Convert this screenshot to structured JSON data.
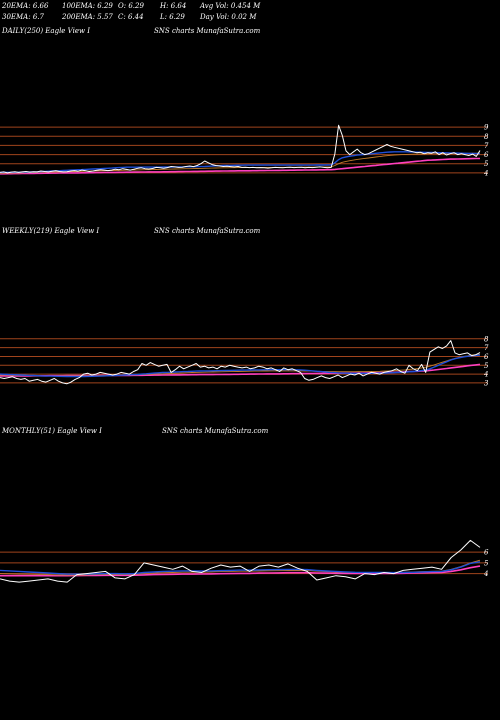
{
  "stats_row1": [
    "20EMA: 6.66",
    "100EMA: 6.29",
    "O: 6.29",
    "H: 6.64",
    "Avg Vol: 0.454  M"
  ],
  "stats_row2": [
    "30EMA: 6.7",
    "200EMA: 5.57",
    "C: 6.44",
    "L: 6.29",
    "Day Vol: 0.02  M"
  ],
  "panels": [
    {
      "label": "DAILY(250) Eagle  View  I",
      "watermark": "SNS charts MunafaSutra.com"
    },
    {
      "label": "WEEKLY(219) Eagle  View  I",
      "watermark": "SNS charts MunafaSutra.com"
    },
    {
      "label": "MONTHLY(51) Eagle  View  I",
      "watermark": "SNS charts MunafaSutra.com"
    }
  ],
  "colors": {
    "background": "#000000",
    "price": "#ffffff",
    "ema_fast": "#1f4fd8",
    "ema_slow": "#ff3fbf",
    "ema_mid": "#c07a2a",
    "hline": "#a0441c"
  },
  "chart_data": [
    {
      "type": "line",
      "name": "daily",
      "yticks": [
        4,
        5,
        6,
        7,
        8,
        9
      ],
      "ylim": [
        3.0,
        10.0
      ],
      "close": [
        4.05,
        4.1,
        4.0,
        4.08,
        4.12,
        4.05,
        4.1,
        4.15,
        4.08,
        4.12,
        4.1,
        4.2,
        4.15,
        4.1,
        4.18,
        4.22,
        4.15,
        4.1,
        4.12,
        4.2,
        4.25,
        4.18,
        4.3,
        4.22,
        4.15,
        4.2,
        4.28,
        4.35,
        4.3,
        4.25,
        4.3,
        4.4,
        4.35,
        4.45,
        4.38,
        4.3,
        4.4,
        4.5,
        4.55,
        4.45,
        4.42,
        4.48,
        4.6,
        4.55,
        4.5,
        4.58,
        4.7,
        4.65,
        4.6,
        4.62,
        4.7,
        4.75,
        4.68,
        4.8,
        5.0,
        5.3,
        5.1,
        4.9,
        4.8,
        4.75,
        4.7,
        4.72,
        4.68,
        4.65,
        4.7,
        4.6,
        4.62,
        4.58,
        4.6,
        4.55,
        4.58,
        4.55,
        4.52,
        4.55,
        4.6,
        4.58,
        4.55,
        4.6,
        4.62,
        4.58,
        4.6,
        4.62,
        4.55,
        4.6,
        4.58,
        4.62,
        4.65,
        4.6,
        4.55,
        4.6,
        6.1,
        9.2,
        8.1,
        6.4,
        6.0,
        6.3,
        6.6,
        6.2,
        6.0,
        6.1,
        6.3,
        6.5,
        6.7,
        6.9,
        7.1,
        6.9,
        6.8,
        6.7,
        6.6,
        6.5,
        6.4,
        6.3,
        6.2,
        6.25,
        6.1,
        6.2,
        6.15,
        6.3,
        6.0,
        6.2,
        5.95,
        6.1,
        6.2,
        6.0,
        6.1,
        6.0,
        5.9,
        6.05,
        5.8,
        6.44
      ],
      "ema_fast": [
        4.05,
        4.06,
        4.06,
        4.06,
        4.07,
        4.07,
        4.08,
        4.08,
        4.09,
        4.1,
        4.12,
        4.14,
        4.16,
        4.18,
        4.2,
        4.22,
        4.24,
        4.26,
        4.28,
        4.3,
        4.32,
        4.34,
        4.36,
        4.38,
        4.4,
        4.42,
        4.44,
        4.46,
        4.48,
        4.5,
        4.52,
        4.55,
        4.58,
        4.6,
        4.62,
        4.62,
        4.62,
        4.62,
        4.62,
        4.63,
        4.63,
        4.63,
        4.63,
        4.63,
        4.64,
        4.64,
        4.64,
        4.65,
        4.65,
        4.65,
        4.66,
        4.66,
        4.66,
        4.67,
        4.68,
        4.7,
        4.72,
        4.74,
        4.76,
        4.78,
        4.8,
        4.81,
        4.82,
        4.83,
        4.84,
        4.84,
        4.85,
        4.85,
        4.85,
        4.85,
        4.85,
        4.85,
        4.85,
        4.85,
        4.85,
        4.85,
        4.85,
        4.85,
        4.85,
        4.85,
        4.85,
        4.85,
        4.85,
        4.85,
        4.85,
        4.86,
        4.86,
        4.86,
        4.86,
        4.87,
        5.1,
        5.45,
        5.65,
        5.75,
        5.82,
        5.88,
        5.94,
        5.98,
        6.02,
        6.06,
        6.1,
        6.14,
        6.18,
        6.22,
        6.26,
        6.28,
        6.3,
        6.3,
        6.3,
        6.3,
        6.29,
        6.28,
        6.27,
        6.26,
        6.25,
        6.24,
        6.23,
        6.22,
        6.21,
        6.2,
        6.19,
        6.18,
        6.17,
        6.16,
        6.15,
        6.14,
        6.13,
        6.12,
        6.11,
        6.1
      ],
      "ema_slow": [
        3.9,
        3.9,
        3.91,
        3.91,
        3.92,
        3.92,
        3.93,
        3.93,
        3.94,
        3.94,
        3.95,
        3.95,
        3.96,
        3.96,
        3.97,
        3.97,
        3.98,
        3.98,
        3.99,
        3.99,
        4.0,
        4.0,
        4.01,
        4.01,
        4.02,
        4.02,
        4.03,
        4.03,
        4.04,
        4.04,
        4.05,
        4.05,
        4.06,
        4.06,
        4.07,
        4.07,
        4.08,
        4.08,
        4.09,
        4.09,
        4.1,
        4.1,
        4.11,
        4.11,
        4.12,
        4.12,
        4.13,
        4.13,
        4.14,
        4.14,
        4.15,
        4.15,
        4.16,
        4.16,
        4.17,
        4.17,
        4.18,
        4.18,
        4.19,
        4.19,
        4.2,
        4.2,
        4.21,
        4.21,
        4.22,
        4.22,
        4.23,
        4.23,
        4.24,
        4.24,
        4.25,
        4.25,
        4.26,
        4.26,
        4.27,
        4.27,
        4.28,
        4.28,
        4.29,
        4.29,
        4.3,
        4.3,
        4.31,
        4.31,
        4.32,
        4.32,
        4.33,
        4.33,
        4.34,
        4.34,
        4.38,
        4.42,
        4.46,
        4.5,
        4.54,
        4.58,
        4.62,
        4.66,
        4.7,
        4.74,
        4.78,
        4.82,
        4.86,
        4.9,
        4.94,
        4.98,
        5.02,
        5.06,
        5.1,
        5.14,
        5.18,
        5.22,
        5.26,
        5.3,
        5.34,
        5.38,
        5.4,
        5.42,
        5.44,
        5.46,
        5.48,
        5.5,
        5.51,
        5.52,
        5.53,
        5.54,
        5.55,
        5.56,
        5.57,
        5.57
      ],
      "ema_mid": [
        3.95,
        3.96,
        3.97,
        3.98,
        3.99,
        4.0,
        4.01,
        4.02,
        4.03,
        4.04,
        4.05,
        4.06,
        4.07,
        4.08,
        4.09,
        4.1,
        4.11,
        4.12,
        4.13,
        4.14,
        4.15,
        4.16,
        4.17,
        4.18,
        4.19,
        4.2,
        4.21,
        4.22,
        4.23,
        4.24,
        4.25,
        4.26,
        4.27,
        4.28,
        4.29,
        4.3,
        4.31,
        4.32,
        4.33,
        4.34,
        4.35,
        4.36,
        4.37,
        4.38,
        4.39,
        4.4,
        4.41,
        4.42,
        4.43,
        4.44,
        4.45,
        4.46,
        4.47,
        4.48,
        4.49,
        4.5,
        4.51,
        4.52,
        4.53,
        4.54,
        4.55,
        4.55,
        4.56,
        4.56,
        4.57,
        4.57,
        4.58,
        4.58,
        4.59,
        4.59,
        4.6,
        4.6,
        4.6,
        4.6,
        4.61,
        4.61,
        4.61,
        4.61,
        4.62,
        4.62,
        4.62,
        4.62,
        4.63,
        4.63,
        4.63,
        4.63,
        4.64,
        4.64,
        4.64,
        4.64,
        4.8,
        5.0,
        5.15,
        5.25,
        5.33,
        5.4,
        5.47,
        5.53,
        5.58,
        5.63,
        5.68,
        5.73,
        5.78,
        5.83,
        5.88,
        5.92,
        5.95,
        5.98,
        6.0,
        6.02,
        6.03,
        6.04,
        6.05,
        6.06,
        6.07,
        6.08,
        6.09,
        6.1,
        6.1,
        6.11,
        6.11,
        6.12,
        6.12,
        6.13,
        6.13,
        6.14,
        6.14,
        6.15,
        6.15,
        6.16
      ]
    },
    {
      "type": "line",
      "name": "weekly",
      "yticks": [
        3,
        4,
        5,
        6,
        7,
        8
      ],
      "ylim": [
        2.2,
        9.0
      ],
      "close": [
        3.6,
        3.5,
        3.6,
        3.7,
        3.5,
        3.4,
        3.5,
        3.2,
        3.3,
        3.4,
        3.2,
        3.1,
        3.3,
        3.5,
        3.2,
        3.0,
        2.9,
        3.1,
        3.4,
        3.6,
        4.0,
        4.1,
        3.9,
        4.0,
        4.2,
        4.1,
        4.0,
        3.9,
        4.0,
        4.2,
        4.1,
        4.0,
        4.3,
        4.5,
        5.2,
        5.0,
        5.3,
        5.1,
        4.9,
        5.0,
        5.1,
        4.2,
        4.5,
        4.9,
        4.6,
        4.8,
        5.0,
        5.2,
        4.8,
        4.9,
        4.7,
        4.8,
        4.6,
        4.9,
        4.8,
        5.0,
        4.9,
        4.8,
        4.7,
        4.8,
        4.6,
        4.7,
        4.9,
        4.8,
        4.6,
        4.7,
        4.5,
        4.3,
        4.7,
        4.5,
        4.6,
        4.4,
        4.2,
        3.5,
        3.3,
        3.4,
        3.6,
        3.8,
        3.6,
        3.5,
        3.7,
        3.9,
        3.6,
        3.8,
        4.0,
        3.9,
        4.1,
        3.8,
        4.0,
        4.2,
        4.1,
        4.0,
        4.2,
        4.3,
        4.4,
        4.6,
        4.3,
        4.1,
        5.0,
        4.6,
        4.4,
        5.1,
        4.2,
        6.5,
        6.8,
        7.1,
        6.9,
        7.2,
        7.8,
        6.4,
        6.2,
        6.3,
        6.4,
        6.1,
        6.2,
        6.44
      ],
      "ema_fast": [
        4.0,
        3.98,
        3.96,
        3.94,
        3.92,
        3.9,
        3.88,
        3.86,
        3.84,
        3.82,
        3.8,
        3.78,
        3.77,
        3.76,
        3.75,
        3.74,
        3.73,
        3.72,
        3.72,
        3.72,
        3.73,
        3.74,
        3.75,
        3.76,
        3.78,
        3.8,
        3.82,
        3.84,
        3.86,
        3.88,
        3.9,
        3.92,
        3.94,
        3.96,
        4.0,
        4.04,
        4.08,
        4.12,
        4.15,
        4.18,
        4.2,
        4.22,
        4.24,
        4.26,
        4.28,
        4.3,
        4.32,
        4.34,
        4.35,
        4.36,
        4.37,
        4.38,
        4.39,
        4.4,
        4.41,
        4.42,
        4.43,
        4.44,
        4.45,
        4.46,
        4.47,
        4.48,
        4.48,
        4.49,
        4.49,
        4.5,
        4.5,
        4.5,
        4.5,
        4.5,
        4.5,
        4.49,
        4.48,
        4.44,
        4.4,
        4.36,
        4.32,
        4.28,
        4.24,
        4.2,
        4.17,
        4.14,
        4.12,
        4.1,
        4.09,
        4.08,
        4.08,
        4.08,
        4.08,
        4.09,
        4.1,
        4.11,
        4.12,
        4.14,
        4.16,
        4.18,
        4.2,
        4.22,
        4.26,
        4.3,
        4.34,
        4.4,
        4.45,
        4.6,
        4.8,
        5.0,
        5.2,
        5.4,
        5.6,
        5.75,
        5.85,
        5.95,
        6.02,
        6.08,
        6.12,
        6.15
      ],
      "ema_slow": [
        3.8,
        3.8,
        3.8,
        3.8,
        3.8,
        3.8,
        3.8,
        3.8,
        3.81,
        3.81,
        3.81,
        3.81,
        3.82,
        3.82,
        3.82,
        3.82,
        3.83,
        3.83,
        3.83,
        3.83,
        3.84,
        3.84,
        3.84,
        3.84,
        3.85,
        3.85,
        3.85,
        3.85,
        3.86,
        3.86,
        3.86,
        3.86,
        3.87,
        3.87,
        3.87,
        3.88,
        3.88,
        3.89,
        3.89,
        3.9,
        3.9,
        3.9,
        3.91,
        3.91,
        3.92,
        3.92,
        3.93,
        3.93,
        3.94,
        3.94,
        3.95,
        3.95,
        3.96,
        3.96,
        3.97,
        3.97,
        3.98,
        3.98,
        3.99,
        3.99,
        4.0,
        4.0,
        4.01,
        4.01,
        4.02,
        4.02,
        4.03,
        4.03,
        4.04,
        4.04,
        4.05,
        4.05,
        4.06,
        4.06,
        4.07,
        4.07,
        4.08,
        4.08,
        4.09,
        4.09,
        4.1,
        4.1,
        4.11,
        4.11,
        4.12,
        4.12,
        4.13,
        4.13,
        4.14,
        4.15,
        4.16,
        4.17,
        4.18,
        4.19,
        4.2,
        4.22,
        4.24,
        4.26,
        4.28,
        4.3,
        4.32,
        4.35,
        4.38,
        4.42,
        4.47,
        4.52,
        4.58,
        4.64,
        4.7,
        4.76,
        4.82,
        4.88,
        4.94,
        5.0,
        5.05,
        5.1
      ],
      "ema_mid": [
        3.9,
        3.89,
        3.88,
        3.87,
        3.86,
        3.85,
        3.84,
        3.83,
        3.82,
        3.81,
        3.8,
        3.8,
        3.8,
        3.8,
        3.8,
        3.8,
        3.8,
        3.8,
        3.8,
        3.8,
        3.81,
        3.81,
        3.82,
        3.82,
        3.83,
        3.84,
        3.85,
        3.86,
        3.87,
        3.88,
        3.89,
        3.9,
        3.91,
        3.92,
        3.94,
        3.96,
        3.98,
        4.0,
        4.02,
        4.04,
        4.06,
        4.08,
        4.1,
        4.12,
        4.14,
        4.16,
        4.18,
        4.2,
        4.21,
        4.22,
        4.23,
        4.24,
        4.25,
        4.26,
        4.27,
        4.28,
        4.29,
        4.3,
        4.31,
        4.32,
        4.33,
        4.34,
        4.34,
        4.35,
        4.35,
        4.36,
        4.36,
        4.36,
        4.36,
        4.36,
        4.36,
        4.36,
        4.36,
        4.35,
        4.34,
        4.33,
        4.32,
        4.31,
        4.3,
        4.29,
        4.28,
        4.27,
        4.27,
        4.27,
        4.27,
        4.27,
        4.28,
        4.28,
        4.29,
        4.3,
        4.31,
        4.32,
        4.34,
        4.36,
        4.38,
        4.41,
        4.44,
        4.47,
        4.52,
        4.57,
        4.63,
        4.7,
        4.78,
        4.9,
        5.05,
        5.2,
        5.35,
        5.5,
        5.65,
        5.78,
        5.9,
        6.0,
        6.08,
        6.15,
        6.2,
        6.25
      ]
    },
    {
      "type": "line",
      "name": "monthly",
      "yticks": [
        4,
        5,
        6
      ],
      "ylim": [
        2.0,
        7.6
      ],
      "close": [
        3.5,
        3.3,
        3.2,
        3.3,
        3.4,
        3.5,
        3.3,
        3.2,
        3.9,
        4.0,
        4.1,
        4.2,
        3.6,
        3.5,
        3.9,
        5.0,
        4.8,
        4.6,
        4.4,
        4.7,
        4.2,
        4.1,
        4.5,
        4.8,
        4.6,
        4.7,
        4.2,
        4.7,
        4.8,
        4.6,
        4.9,
        4.5,
        4.2,
        3.4,
        3.6,
        3.8,
        3.7,
        3.5,
        4.0,
        3.9,
        4.1,
        4.0,
        4.3,
        4.4,
        4.5,
        4.6,
        4.4,
        5.5,
        6.2,
        7.1,
        6.44
      ],
      "ema_fast": [
        4.3,
        4.25,
        4.2,
        4.15,
        4.1,
        4.05,
        4.0,
        3.95,
        3.95,
        3.95,
        3.98,
        4.0,
        4.0,
        3.98,
        4.0,
        4.1,
        4.15,
        4.2,
        4.22,
        4.25,
        4.25,
        4.24,
        4.25,
        4.28,
        4.3,
        4.32,
        4.32,
        4.34,
        4.36,
        4.37,
        4.39,
        4.39,
        4.37,
        4.3,
        4.24,
        4.2,
        4.16,
        4.12,
        4.11,
        4.1,
        4.1,
        4.09,
        4.1,
        4.12,
        4.15,
        4.18,
        4.2,
        4.35,
        4.6,
        4.95,
        5.1
      ],
      "ema_slow": [
        3.8,
        3.8,
        3.8,
        3.8,
        3.8,
        3.8,
        3.8,
        3.8,
        3.81,
        3.82,
        3.83,
        3.84,
        3.84,
        3.84,
        3.85,
        3.88,
        3.9,
        3.92,
        3.93,
        3.95,
        3.95,
        3.96,
        3.97,
        3.99,
        4.0,
        4.02,
        4.02,
        4.04,
        4.05,
        4.06,
        4.08,
        4.08,
        4.08,
        4.05,
        4.04,
        4.03,
        4.02,
        4.01,
        4.01,
        4.01,
        4.02,
        4.02,
        4.03,
        4.05,
        4.07,
        4.09,
        4.1,
        4.2,
        4.35,
        4.55,
        4.7
      ],
      "ema_mid": [
        4.0,
        3.98,
        3.96,
        3.94,
        3.92,
        3.9,
        3.88,
        3.86,
        3.87,
        3.88,
        3.9,
        3.92,
        3.92,
        3.91,
        3.93,
        4.0,
        4.04,
        4.08,
        4.1,
        4.13,
        4.13,
        4.13,
        4.15,
        4.18,
        4.2,
        4.22,
        4.22,
        4.24,
        4.26,
        4.27,
        4.29,
        4.29,
        4.28,
        4.22,
        4.18,
        4.15,
        4.12,
        4.09,
        4.09,
        4.09,
        4.1,
        4.1,
        4.12,
        4.15,
        4.18,
        4.21,
        4.23,
        4.4,
        4.65,
        5.0,
        5.25
      ]
    }
  ]
}
